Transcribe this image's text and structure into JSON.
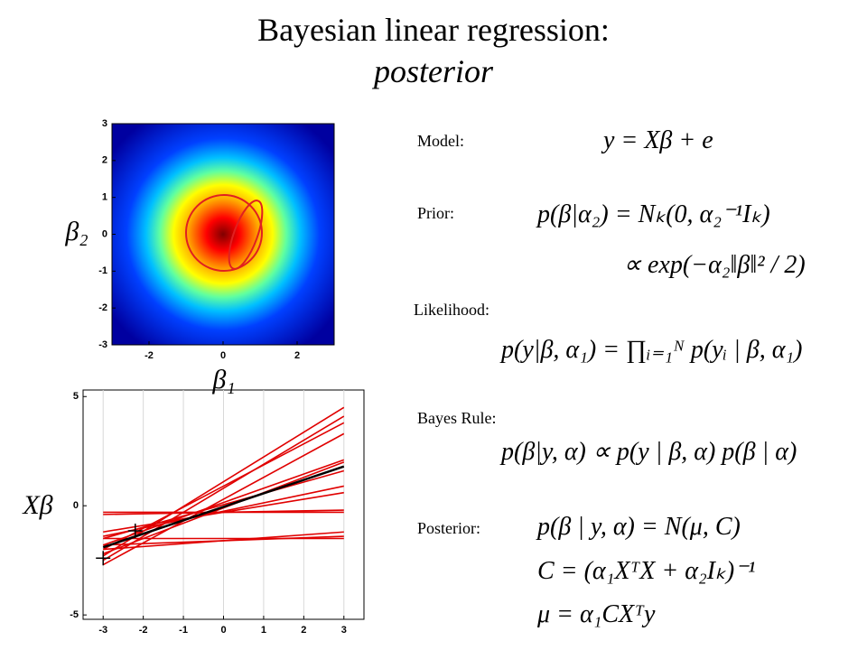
{
  "title": "Bayesian linear regression:",
  "subtitle": "posterior",
  "chart_data": [
    {
      "type": "heatmap",
      "xlabel": "β₁",
      "ylabel": "β₂",
      "xlim": [
        -3,
        3
      ],
      "ylim": [
        -3,
        3
      ],
      "xticks": [
        -2,
        0,
        2
      ],
      "yticks": [
        -3,
        -2,
        -1,
        0,
        1,
        2,
        3
      ]
    },
    {
      "type": "line",
      "ylabel": "Xβ",
      "x": [
        -3,
        3
      ],
      "xlim": [
        -3.5,
        3.5
      ],
      "ylim": [
        -5.2,
        5.3
      ],
      "xticks": [
        -3,
        -2,
        -1,
        0,
        1,
        2,
        3
      ],
      "yticks": [
        -5,
        0,
        5
      ],
      "grid": "x",
      "series": [
        {
          "color": "#e00000",
          "values": [
            -2.3,
            4.5
          ]
        },
        {
          "color": "#e00000",
          "values": [
            -2.5,
            4.1
          ]
        },
        {
          "color": "#e00000",
          "values": [
            -2.0,
            3.8
          ]
        },
        {
          "color": "#e00000",
          "values": [
            -2.7,
            3.3
          ]
        },
        {
          "color": "#e00000",
          "values": [
            -1.8,
            2.1
          ]
        },
        {
          "color": "#e00000",
          "values": [
            -2.2,
            2.0
          ]
        },
        {
          "color": "#e00000",
          "values": [
            -1.5,
            1.6
          ]
        },
        {
          "color": "#e00000",
          "values": [
            -1.4,
            0.9
          ]
        },
        {
          "color": "#e00000",
          "values": [
            -1.2,
            0.6
          ]
        },
        {
          "color": "#e00000",
          "values": [
            -0.4,
            -0.2
          ]
        },
        {
          "color": "#e00000",
          "values": [
            -0.3,
            -0.3
          ]
        },
        {
          "color": "#e00000",
          "values": [
            -2.0,
            -1.2
          ]
        },
        {
          "color": "#e00000",
          "values": [
            -1.8,
            -1.4
          ]
        },
        {
          "color": "#e00000",
          "values": [
            -1.5,
            -1.5
          ]
        },
        {
          "color": "#000000",
          "values": [
            -1.9,
            1.8
          ]
        }
      ],
      "points": {
        "x": [
          -3.0,
          -2.2
        ],
        "y": [
          -2.4,
          -1.15
        ],
        "color": "#000000"
      }
    }
  ],
  "equations": [
    {
      "label": "Model:",
      "lines": [
        "y = Xβ + e"
      ]
    },
    {
      "label": "Prior:",
      "lines": [
        "p(β|α₂) = Nₖ(0, α₂⁻¹Iₖ)",
        "∝ exp(−α₂‖β‖² / 2)"
      ]
    },
    {
      "label": "Likelihood:",
      "lines": [
        "p(y|β, α₁) = ∏ᵢ₌₁ᴺ p(yᵢ | β, α₁)"
      ]
    },
    {
      "label": "Bayes Rule:",
      "lines": [
        "p(β|y, α) ∝ p(y | β, α) p(β | α)"
      ]
    },
    {
      "label": "Posterior:",
      "lines": [
        "p(β | y, α) = N(μ, C)",
        "C = (α₁XᵀX + α₂Iₖ)⁻¹",
        "μ = α₁CXᵀy"
      ]
    }
  ]
}
